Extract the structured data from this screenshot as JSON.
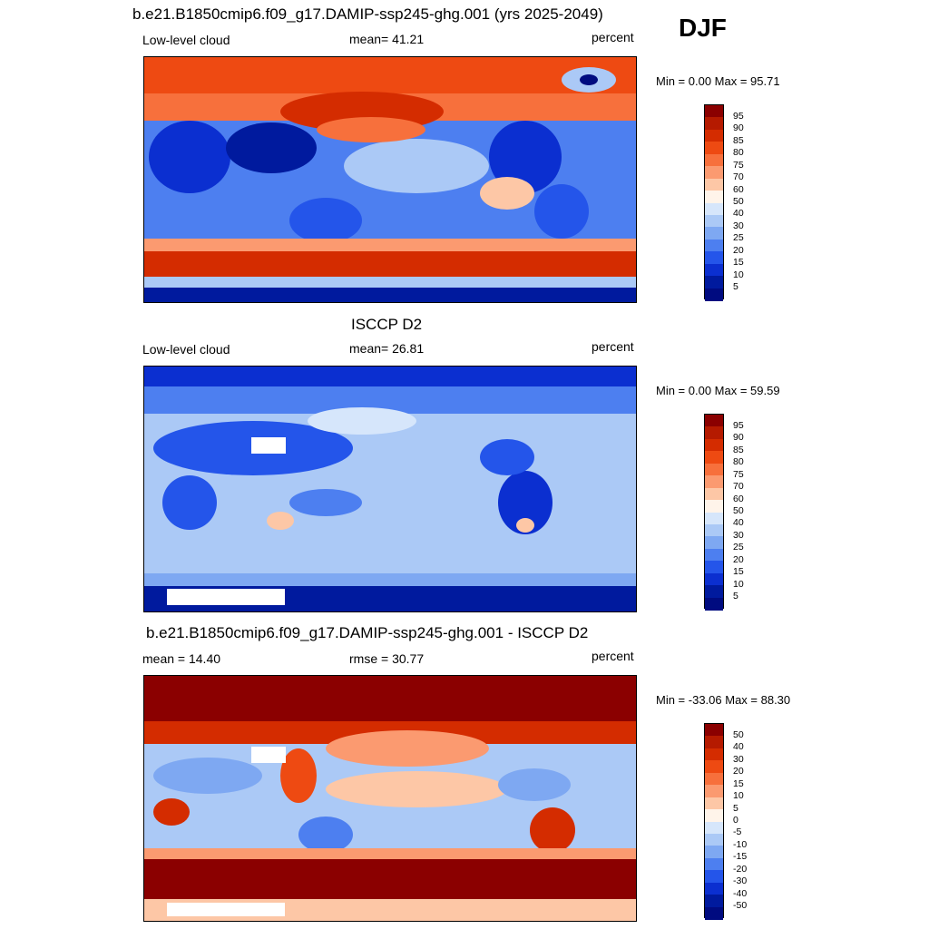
{
  "season": "DJF",
  "panels": [
    {
      "title": "b.e21.B1850cmip6.f09_g17.DAMIP-ssp245-ghg.001 (yrs 2025-2049)",
      "left_label": "Low-level cloud",
      "center_label": "mean=  41.21",
      "units": "percent",
      "minmax": "Min =   0.00 Max =  95.71",
      "cbar_labels": [
        "95",
        "90",
        "85",
        "80",
        "75",
        "70",
        "60",
        "50",
        "40",
        "30",
        "25",
        "20",
        "15",
        "10",
        "5"
      ]
    },
    {
      "title": "ISCCP D2",
      "left_label": "Low-level cloud",
      "center_label": "mean=  26.81",
      "units": "percent",
      "minmax": "Min =   0.00 Max =  59.59",
      "cbar_labels": [
        "95",
        "90",
        "85",
        "80",
        "75",
        "70",
        "60",
        "50",
        "40",
        "30",
        "25",
        "20",
        "15",
        "10",
        "5"
      ]
    },
    {
      "title": "b.e21.B1850cmip6.f09_g17.DAMIP-ssp245-ghg.001 - ISCCP D2",
      "left_label": "mean =  14.40",
      "center_label": "rmse =  30.77",
      "units": "percent",
      "minmax": "Min = -33.06 Max =  88.30",
      "cbar_labels": [
        "50",
        "40",
        "30",
        "20",
        "15",
        "10",
        "5",
        "0",
        "-5",
        "-10",
        "-15",
        "-20",
        "-30",
        "-40",
        "-50"
      ]
    }
  ],
  "colors": {
    "palette": [
      "#8b0000",
      "#b51a00",
      "#d42c00",
      "#ee4a12",
      "#f7703c",
      "#fb9a70",
      "#fdc7a6",
      "#fff4ea",
      "#d6e6fb",
      "#abc9f6",
      "#7ea8f2",
      "#4d7ff0",
      "#2455ea",
      "#0b2fd0",
      "#001a9e",
      "#000b80"
    ]
  }
}
